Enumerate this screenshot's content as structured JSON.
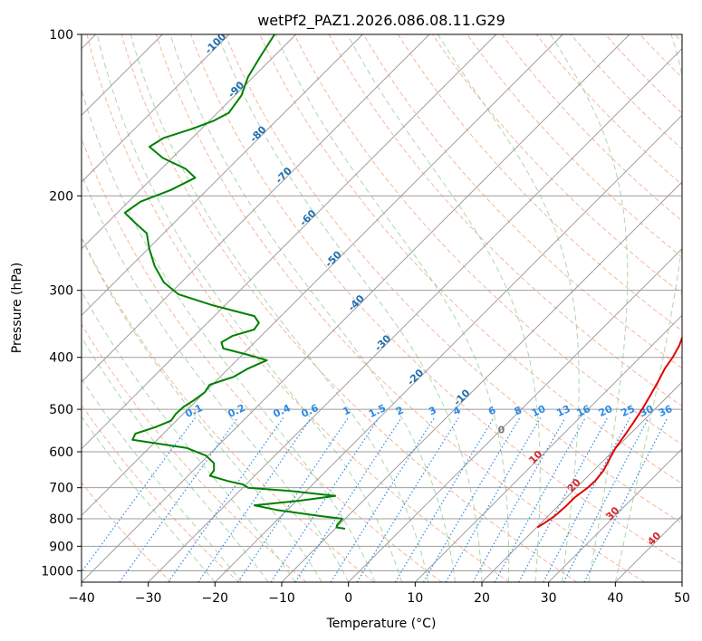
{
  "chart_data": {
    "type": "line",
    "title": "wetPf2_PAZ1.2026.086.08.11.G29",
    "xlabel": "Temperature (°C)",
    "ylabel": "Pressure (hPa)",
    "xlim": [
      -40,
      50
    ],
    "ylim": [
      1050,
      100
    ],
    "y_scale": "log",
    "grid": true,
    "x_ticks": [
      "−40",
      "−30",
      "−20",
      "−10",
      "0",
      "10",
      "20",
      "30",
      "40",
      "50"
    ],
    "x_tick_values": [
      -40,
      -30,
      -20,
      -10,
      0,
      10,
      20,
      30,
      40,
      50
    ],
    "y_ticks": [
      "100",
      "200",
      "300",
      "400",
      "500",
      "600",
      "700",
      "800",
      "900",
      "1000"
    ],
    "y_tick_values": [
      100,
      200,
      300,
      400,
      500,
      600,
      700,
      800,
      900,
      1000
    ],
    "skew": 45,
    "colors": {
      "temperature": "#e60000",
      "dewpoint": "#008000",
      "dry_adiabat": "#f4a582",
      "moist_adiabat": "#99cc99",
      "mixing_ratio": "#2b8ae6",
      "isotherm_label": "#1f6fb0",
      "isotherm": "#9e9e9e"
    },
    "series": [
      {
        "key": "temperature",
        "pressure": [
          830,
          815,
          790,
          760,
          730,
          700,
          680,
          650,
          620,
          590,
          560,
          530,
          500,
          470,
          440,
          420,
          400,
          380,
          360,
          340,
          320,
          300,
          280,
          260,
          240,
          220,
          200,
          185,
          170,
          155,
          140,
          125,
          115,
          105,
          100
        ],
        "temp": [
          20.1,
          20.5,
          21.0,
          21.2,
          21.2,
          21.7,
          21.8,
          21.5,
          20.7,
          19.9,
          19.4,
          18.8,
          18.1,
          17.2,
          16.2,
          15.4,
          14.9,
          14.1,
          12.9,
          11.3,
          9.7,
          8.5,
          7.1,
          5.8,
          4.5,
          2.8,
          0.3,
          -1.8,
          -3.0,
          -5.0,
          -7.5,
          -9.4,
          -10.7,
          -11.4,
          -11.6
        ]
      },
      {
        "key": "dewpoint",
        "pressure": [
          835,
          830,
          820,
          800,
          790,
          770,
          755,
          740,
          725,
          710,
          700,
          690,
          680,
          665,
          650,
          630,
          610,
          590,
          570,
          555,
          540,
          525,
          510,
          495,
          480,
          465,
          450,
          435,
          420,
          405,
          395,
          385,
          375,
          365,
          355,
          345,
          335,
          320,
          305,
          290,
          270,
          250,
          235,
          225,
          215,
          205,
          195,
          185,
          178,
          170,
          162,
          156,
          150,
          145,
          140,
          130,
          120,
          110,
          100
        ],
        "temp": [
          -8.5,
          -10.0,
          -10.3,
          -10.4,
          -14.4,
          -21.6,
          -25.6,
          -19.5,
          -14.9,
          -22.4,
          -29.2,
          -30.5,
          -33.3,
          -36.7,
          -36.9,
          -38.0,
          -40.3,
          -44.4,
          -53.7,
          -54.2,
          -52.2,
          -50.8,
          -51.1,
          -51.0,
          -50.4,
          -50.0,
          -50.4,
          -48.0,
          -47.1,
          -45.5,
          -49.4,
          -53.8,
          -55.0,
          -54.3,
          -52.0,
          -52.3,
          -54.0,
          -61.8,
          -68.7,
          -72.6,
          -76.5,
          -80.0,
          -82.5,
          -85.7,
          -88.9,
          -88.2,
          -85.4,
          -83.6,
          -86.4,
          -91.4,
          -95.1,
          -94.3,
          -91.4,
          -89.4,
          -88.3,
          -89.0,
          -90.8,
          -92.0,
          -93.2
        ]
      }
    ],
    "isotherm_labels": [
      "-100",
      "-90",
      "-80",
      "-70",
      "-60",
      "-50",
      "-40",
      "-30",
      "-20",
      "-10"
    ],
    "isotherm_label_values": [
      -100,
      -90,
      -80,
      -70,
      -60,
      -50,
      -40,
      -30,
      -20,
      -10
    ],
    "mixing_ratio_labels": [
      "0.1",
      "0.2",
      "0.4",
      "0.6",
      "1",
      "1.5",
      "2",
      "3",
      "4",
      "6",
      "8",
      "10",
      "13",
      "16",
      "20",
      "25",
      "30",
      "36"
    ],
    "mixing_ratio_values": [
      0.1,
      0.2,
      0.4,
      0.6,
      1,
      1.5,
      2,
      3,
      4,
      6,
      8,
      10,
      13,
      16,
      20,
      25,
      30,
      36
    ],
    "isotherm_zero_label": "0",
    "isotherm_pos_labels": [
      "10",
      "20",
      "30",
      "40"
    ],
    "isotherm_pos_values": [
      10,
      20,
      30,
      40
    ]
  }
}
